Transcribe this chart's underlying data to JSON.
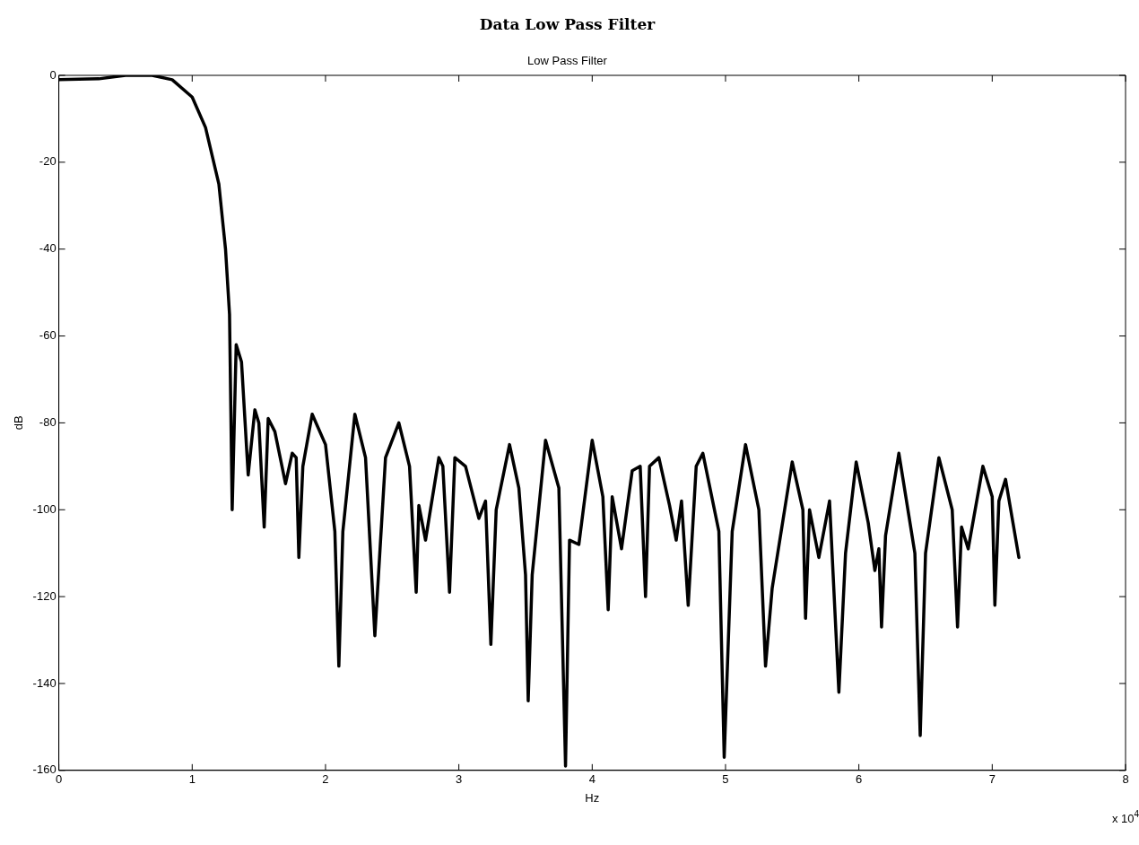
{
  "chart_data": {
    "type": "line",
    "title": "Data Low Pass Filter",
    "subtitle": "Low Pass Filter",
    "xlabel": "Hz",
    "ylabel": "dB",
    "annotations": [
      "x 10$^{4}$"
    ],
    "xlim": [
      0,
      8
    ],
    "xticks": [
      0,
      1,
      2,
      3,
      4,
      5,
      6,
      7,
      8
    ],
    "ylim": [
      -160,
      0
    ],
    "yticks": [
      -160,
      -140,
      -120,
      -100,
      -80,
      -60,
      -40,
      -20,
      0
    ],
    "grid": false,
    "legend": false,
    "marker": "none",
    "line_style": "solid",
    "series": [
      {
        "color": "#000000",
        "x": [
          0,
          0.3,
          0.5,
          0.7,
          0.85,
          1.0,
          1.1,
          1.2,
          1.25,
          1.28,
          1.3,
          1.33,
          1.37,
          1.42,
          1.47,
          1.5,
          1.54,
          1.57,
          1.62,
          1.7,
          1.75,
          1.78,
          1.8,
          1.83,
          1.9,
          2.0,
          2.07,
          2.1,
          2.13,
          2.22,
          2.3,
          2.37,
          2.45,
          2.55,
          2.63,
          2.68,
          2.7,
          2.75,
          2.85,
          2.88,
          2.93,
          2.97,
          3.05,
          3.15,
          3.2,
          3.24,
          3.28,
          3.38,
          3.45,
          3.5,
          3.52,
          3.55,
          3.65,
          3.75,
          3.8,
          3.83,
          3.9,
          4.0,
          4.08,
          4.12,
          4.15,
          4.22,
          4.3,
          4.36,
          4.4,
          4.43,
          4.5,
          4.58,
          4.63,
          4.67,
          4.72,
          4.78,
          4.83,
          4.95,
          4.99,
          5.05,
          5.15,
          5.25,
          5.3,
          5.35,
          5.5,
          5.58,
          5.6,
          5.63,
          5.7,
          5.78,
          5.85,
          5.9,
          5.98,
          6.07,
          6.12,
          6.15,
          6.17,
          6.2,
          6.3,
          6.42,
          6.46,
          6.5,
          6.6,
          6.7,
          6.74,
          6.77,
          6.82,
          6.93,
          7.0,
          7.02,
          7.05,
          7.1,
          7.2
        ],
        "values": [
          -1,
          -0.8,
          0,
          0,
          -1,
          -5,
          -12,
          -25,
          -40,
          -55,
          -100,
          -62,
          -66,
          -92,
          -77,
          -80,
          -104,
          -79,
          -82,
          -94,
          -87,
          -88,
          -111,
          -90,
          -78,
          -85,
          -105,
          -136,
          -105,
          -78,
          -88,
          -129,
          -88,
          -80,
          -90,
          -119,
          -99,
          -107,
          -88,
          -90,
          -119,
          -88,
          -90,
          -102,
          -98,
          -131,
          -100,
          -85,
          -95,
          -115,
          -144,
          -115,
          -84,
          -95,
          -159,
          -107,
          -108,
          -84,
          -97,
          -123,
          -97,
          -109,
          -91,
          -90,
          -120,
          -90,
          -88,
          -99,
          -107,
          -98,
          -122,
          -90,
          -87,
          -105,
          -157,
          -105,
          -85,
          -100,
          -136,
          -118,
          -89,
          -100,
          -125,
          -100,
          -111,
          -98,
          -142,
          -110,
          -89,
          -103,
          -114,
          -109,
          -127,
          -106,
          -87,
          -110,
          -152,
          -110,
          -88,
          -100,
          -127,
          -104,
          -109,
          -90,
          -97,
          -122,
          -98,
          -93,
          -111
        ]
      }
    ]
  }
}
